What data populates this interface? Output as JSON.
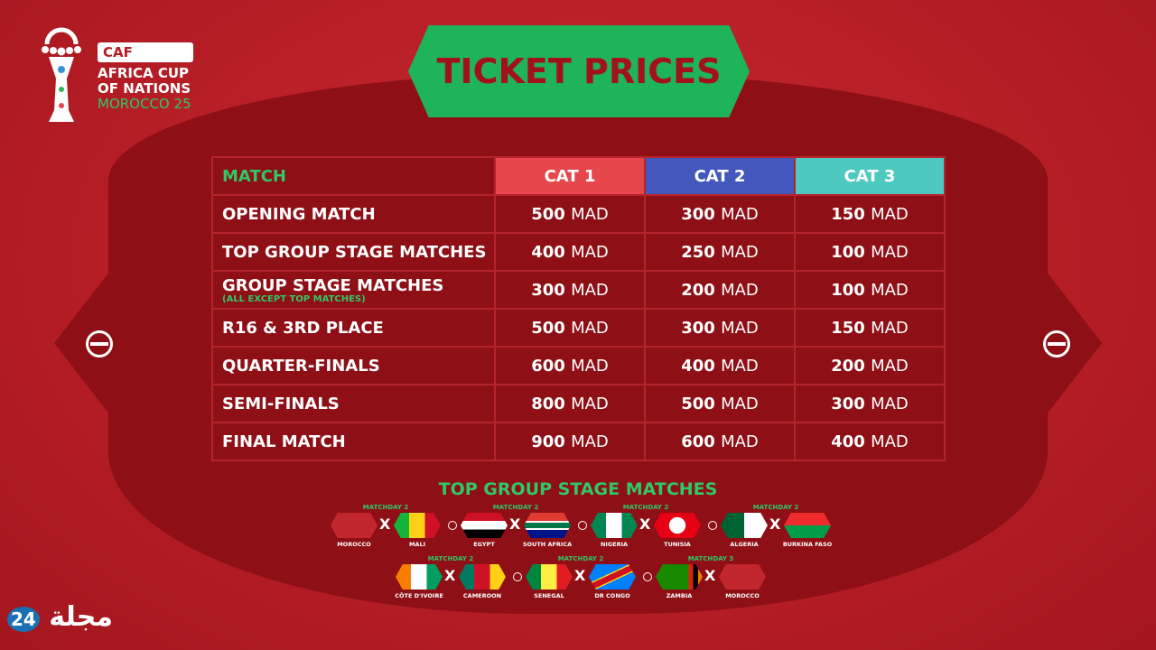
{
  "logo": {
    "caf": "CAF",
    "line1": "AFRICA CUP",
    "line2": "OF NATIONS",
    "line3": "MOROCCO 25"
  },
  "title": "TICKET PRICES",
  "table": {
    "headers": [
      "MATCH",
      "CAT 1",
      "CAT 2",
      "CAT 3"
    ],
    "header_colors": [
      "#e5474d",
      "#4357bd",
      "#4ec9c0"
    ],
    "currency": "MAD",
    "rows": [
      {
        "match": "OPENING MATCH",
        "note": "",
        "prices": [
          "500",
          "300",
          "150"
        ]
      },
      {
        "match": "TOP GROUP STAGE MATCHES",
        "note": "",
        "prices": [
          "400",
          "250",
          "100"
        ]
      },
      {
        "match": "GROUP STAGE MATCHES",
        "note": "(ALL EXCEPT TOP MATCHES)",
        "prices": [
          "300",
          "200",
          "100"
        ]
      },
      {
        "match": "R16 & 3RD PLACE",
        "note": "",
        "prices": [
          "500",
          "300",
          "150"
        ]
      },
      {
        "match": "QUARTER-FINALS",
        "note": "",
        "prices": [
          "600",
          "400",
          "200"
        ]
      },
      {
        "match": "SEMI-FINALS",
        "note": "",
        "prices": [
          "800",
          "500",
          "300"
        ]
      },
      {
        "match": "FINAL MATCH",
        "note": "",
        "prices": [
          "900",
          "600",
          "400"
        ]
      }
    ]
  },
  "top_matches": {
    "title": "TOP GROUP STAGE MATCHES",
    "vs": "X",
    "matches": [
      {
        "matchday": "MATCHDAY 2",
        "home": "MOROCCO",
        "away": "MALI"
      },
      {
        "matchday": "MATCHDAY 2",
        "home": "EGYPT",
        "away": "SOUTH AFRICA"
      },
      {
        "matchday": "MATCHDAY 2",
        "home": "NIGERIA",
        "away": "TUNISIA"
      },
      {
        "matchday": "MATCHDAY 2",
        "home": "ALGERIA",
        "away": "BURKINA FASO"
      },
      {
        "matchday": "MATCHDAY 2",
        "home": "CÔTE D'IVOIRE",
        "away": "CAMEROON"
      },
      {
        "matchday": "MATCHDAY 2",
        "home": "SENEGAL",
        "away": "DR CONGO"
      },
      {
        "matchday": "MATCHDAY 3",
        "home": "ZAMBIA",
        "away": "MOROCCO"
      }
    ]
  },
  "watermark": {
    "number": "24",
    "text": "مجلة"
  }
}
